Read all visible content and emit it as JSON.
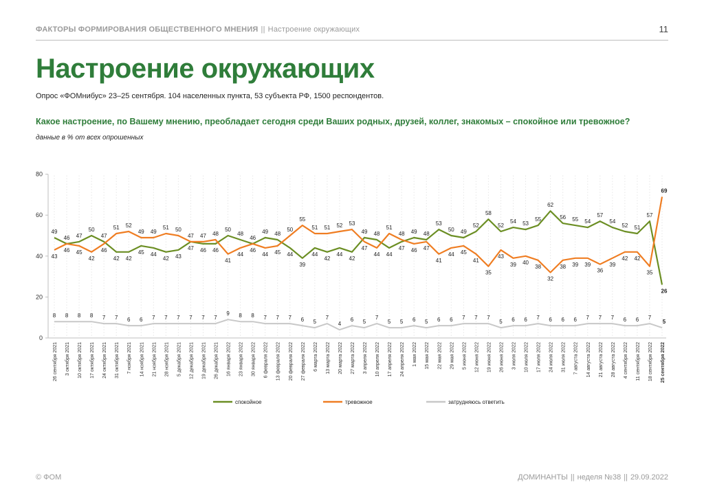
{
  "header": {
    "section": "ФАКТОРЫ ФОРМИРОВАНИЯ ОБЩЕСТВЕННОГО МНЕНИЯ",
    "separator": "||",
    "subsection": "Настроение окружающих",
    "page_number": "11"
  },
  "title": "Настроение окружающих",
  "survey_info": "Опрос «ФОМнибус» 23–25 сентября. 104 населенных пункта, 53 субъекта РФ, 1500 респондентов.",
  "question": "Какое настроение, по Вашему мнению, преобладает сегодня среди Ваших родных, друзей, коллег, знакомых – спокойное или тревожное?",
  "note": "данные в % от всех опрошенных",
  "footer": {
    "left": "© ФОМ",
    "brand": "ДОМИНАНТЫ",
    "sep": "||",
    "week": "неделя №38",
    "date": "29.09.2022"
  },
  "colors": {
    "calm": "#6b8e23",
    "anxious": "#ef7d22",
    "hard": "#c8c8c8",
    "title_green": "#2f7d3a"
  },
  "chart_data": {
    "type": "line",
    "ylim": [
      0,
      80
    ],
    "yticks": [
      0,
      20,
      40,
      60,
      80
    ],
    "grid": "vertical dotted",
    "legend_placement": "bottom",
    "categories": [
      "26 сентября 2021",
      "3 октября 2021",
      "10 октября 2021",
      "17 октября 2021",
      "24 октября 2021",
      "31 октября 2021",
      "7 ноября 2021",
      "14 ноября 2021",
      "21 ноября 2021",
      "28 ноября 2021",
      "5 декабря 2021",
      "12 декабря 2021",
      "19 декабря 2021",
      "26 декабря 2021",
      "16 января 2022",
      "23 января 2022",
      "30 января 2022",
      "6 февраля 2022",
      "13 февраля 2022",
      "20 февраля 2022",
      "27 февраля 2022",
      "6 марта 2022",
      "13 марта 2022",
      "20 марта 2022",
      "27 марта 2022",
      "3 апреля 2022",
      "10 апреля 2022",
      "17 апреля 2022",
      "24 апреля 2022",
      "1 мая 2022",
      "15 мая 2022",
      "22 мая 2022",
      "29 мая 2022",
      "5 июня 2022",
      "12 июня 2022",
      "19 июня 2022",
      "26 июня 2022",
      "3 июля 2022",
      "10 июля 2022",
      "17 июля 2022",
      "24 июля 2022",
      "31 июля 2022",
      "7 августа 2022",
      "14 августа 2022",
      "21 августа 2022",
      "28 августа 2022",
      "4 сентября 2022",
      "11 сентября 2022",
      "18 сентября 2022",
      "25 сентября 2022"
    ],
    "series": [
      {
        "name": "спокойное",
        "color": "#6b8e23",
        "values": [
          49,
          46,
          47,
          50,
          47,
          42,
          42,
          45,
          44,
          42,
          43,
          47,
          46,
          46,
          50,
          48,
          46,
          49,
          48,
          44,
          39,
          44,
          42,
          44,
          42,
          49,
          48,
          44,
          47,
          49,
          48,
          53,
          50,
          49,
          52,
          58,
          52,
          54,
          53,
          55,
          62,
          56,
          55,
          54,
          57,
          54,
          52,
          51,
          57,
          26
        ]
      },
      {
        "name": "тревожное",
        "color": "#ef7d22",
        "values": [
          43,
          46,
          45,
          42,
          46,
          51,
          52,
          49,
          49,
          51,
          50,
          47,
          47,
          48,
          41,
          44,
          46,
          44,
          45,
          50,
          55,
          51,
          51,
          52,
          53,
          47,
          44,
          51,
          48,
          46,
          47,
          41,
          44,
          45,
          41,
          35,
          43,
          39,
          40,
          38,
          32,
          38,
          39,
          39,
          36,
          39,
          42,
          42,
          35,
          69
        ]
      },
      {
        "name": "затрудняюсь ответить",
        "color": "#c8c8c8",
        "values": [
          8,
          8,
          8,
          8,
          7,
          7,
          6,
          6,
          7,
          7,
          7,
          7,
          7,
          7,
          9,
          8,
          8,
          7,
          7,
          7,
          6,
          5,
          7,
          4,
          6,
          5,
          7,
          5,
          5,
          6,
          5,
          6,
          6,
          7,
          7,
          7,
          5,
          6,
          6,
          7,
          6,
          6,
          6,
          7,
          7,
          7,
          6,
          6,
          7,
          5
        ]
      }
    ]
  }
}
